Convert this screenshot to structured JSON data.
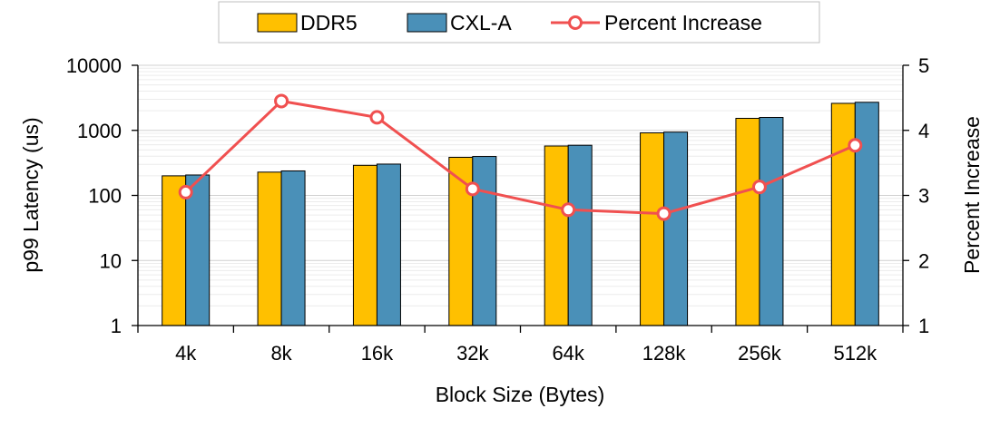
{
  "chart_data": {
    "type": "bar",
    "categories": [
      "4k",
      "8k",
      "16k",
      "32k",
      "64k",
      "128k",
      "256k",
      "512k"
    ],
    "xlabel": "Block Size (Bytes)",
    "ylabel": "p99 Latency (us)",
    "y2label": "Percent Increase",
    "yscale": "log",
    "ylim": [
      1,
      10000
    ],
    "yticks": [
      "1",
      "10",
      "100",
      "1000",
      "10000"
    ],
    "y2lim": [
      1,
      5
    ],
    "y2ticks": [
      "1",
      "2",
      "3",
      "4",
      "5"
    ],
    "legend_position": "top-center",
    "series": [
      {
        "name": "DDR5",
        "type": "bar",
        "axis": "left",
        "color": "#FFC000",
        "values": [
          200,
          228,
          290,
          385,
          575,
          915,
          1530,
          2600
        ]
      },
      {
        "name": "CXL-A",
        "type": "bar",
        "axis": "left",
        "color": "#4A90B8",
        "values": [
          206,
          238,
          303,
          397,
          590,
          940,
          1580,
          2700
        ]
      },
      {
        "name": "Percent Increase",
        "type": "line",
        "axis": "right",
        "color": "#F05050",
        "values": [
          3.05,
          4.45,
          4.2,
          3.1,
          2.78,
          2.72,
          3.13,
          3.77
        ]
      }
    ]
  }
}
